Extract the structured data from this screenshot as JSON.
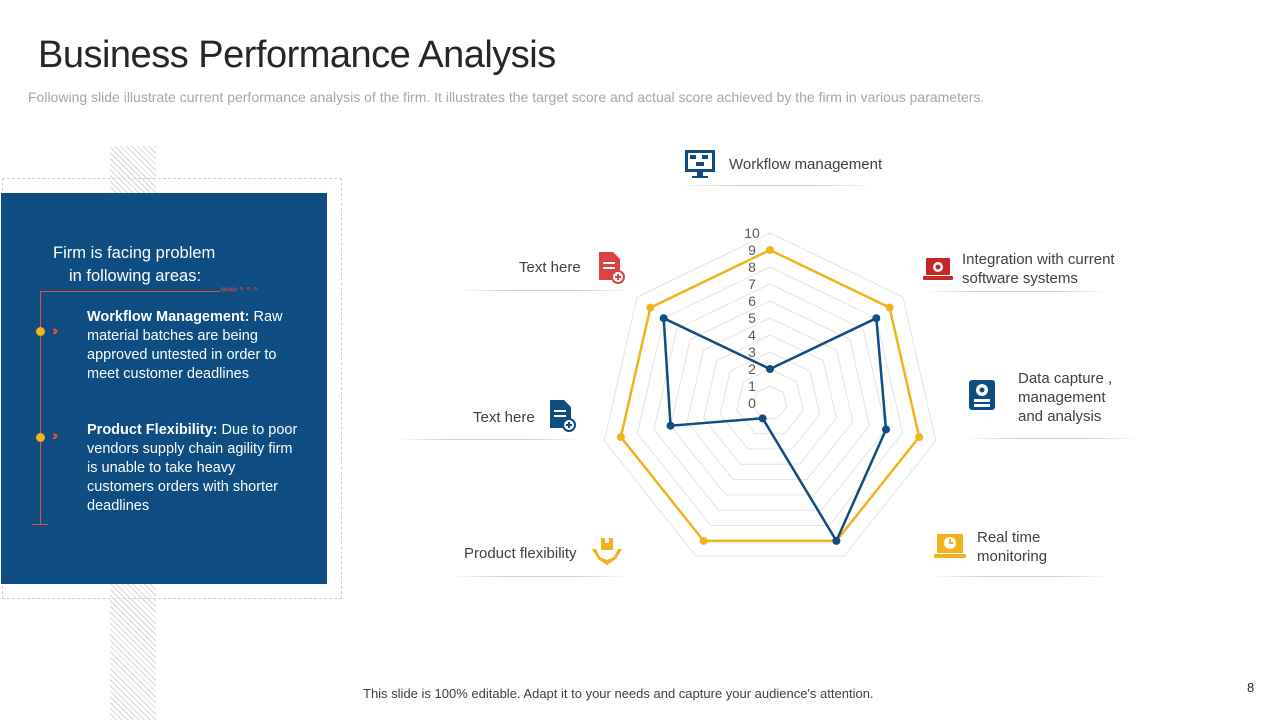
{
  "header": {
    "title": "Business Performance Analysis",
    "subtitle": "Following slide illustrate current performance analysis of the firm. It illustrates the target score and actual score achieved by the firm in various parameters."
  },
  "panel": {
    "heading_line1": "Firm is facing problem",
    "heading_line2": "in following areas:",
    "items": [
      {
        "title": "Workflow Management:",
        "text": "Raw material batches are being approved untested in order to meet customer deadlines"
      },
      {
        "title": "Product Flexibility:",
        "text": "Due to poor vendors supply chain agility firm is unable to take heavy customers orders with shorter deadlines"
      }
    ]
  },
  "labels": {
    "workflow": "Workflow management",
    "integration_1": "Integration with current",
    "integration_2": "software systems",
    "data_1": "Data capture ,",
    "data_2": "management",
    "data_3": "and analysis",
    "realtime_1": "Real time",
    "realtime_2": "monitoring",
    "product": "Product flexibility",
    "text_a": "Text here",
    "text_b": "Text here"
  },
  "icons": {
    "workflow": "flowchart-monitor-icon",
    "integration": "laptop-integration-icon",
    "data": "data-gear-icon",
    "realtime": "laptop-clock-icon",
    "product": "hands-box-icon",
    "text_a": "document-add-icon",
    "text_b": "document-add-icon"
  },
  "colors": {
    "panel_blue": "#0f4c81",
    "accent_red": "#e0523b",
    "accent_yellow": "#f2b21b",
    "target_series": "#f2b21b",
    "actual_series": "#0f4c81"
  },
  "chart_data": {
    "type": "radar",
    "categories": [
      "Workflow management",
      "Integration with current software systems",
      "Data capture , management and analysis",
      "Real time monitoring",
      "Product flexibility",
      "Text here",
      "Text here"
    ],
    "series": [
      {
        "values": [
          9,
          9,
          9,
          9,
          9,
          9,
          9
        ]
      },
      {
        "values": [
          2,
          8,
          7,
          9,
          1,
          6,
          8
        ]
      }
    ],
    "ticks": [
      "0",
      "1",
      "2",
      "3",
      "4",
      "5",
      "6",
      "7",
      "8",
      "9",
      "10"
    ],
    "rlim": [
      0,
      10
    ],
    "grid": true
  },
  "footer": {
    "note": "This slide is 100% editable. Adapt it to your needs and capture your audience's attention.",
    "page": "8"
  }
}
